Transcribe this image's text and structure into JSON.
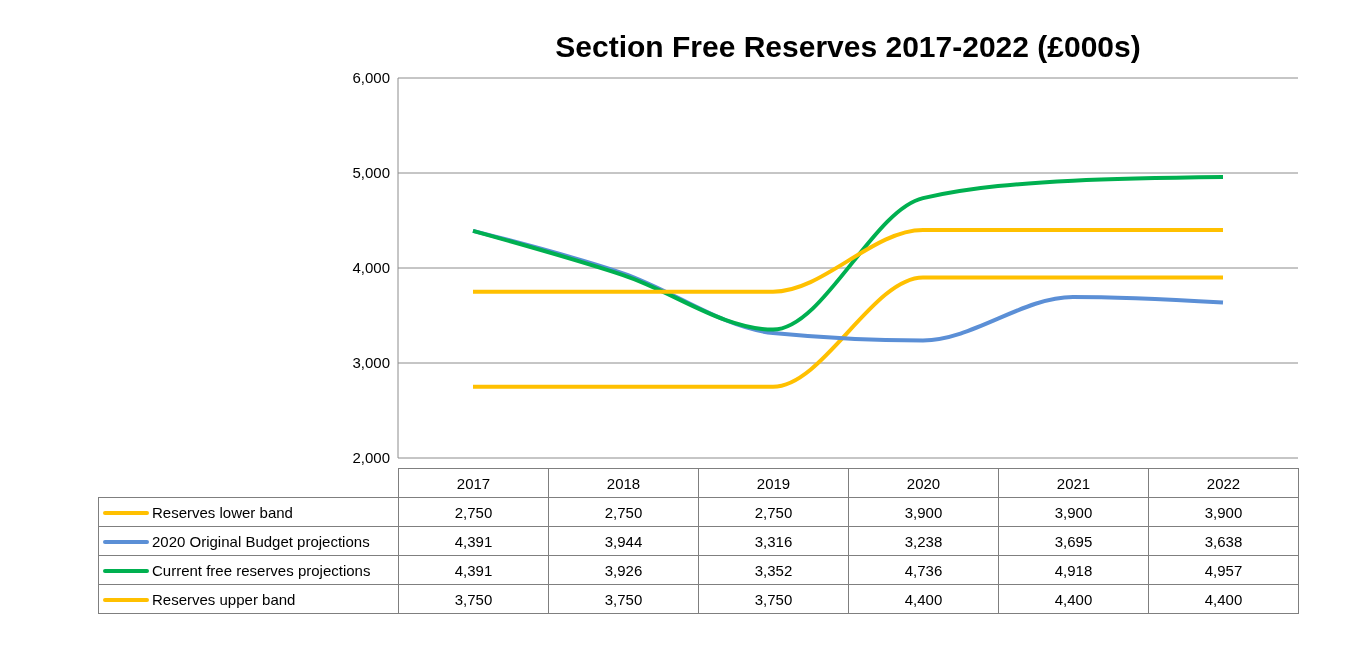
{
  "chart_data": {
    "type": "line",
    "title": "Section Free Reserves 2017-2022 (£000s)",
    "categories": [
      "2017",
      "2018",
      "2019",
      "2020",
      "2021",
      "2022"
    ],
    "series": [
      {
        "name": "Reserves lower band",
        "color": "#ffc000",
        "values": [
          2750,
          2750,
          2750,
          3900,
          3900,
          3900
        ],
        "value_labels": [
          "2,750",
          "2,750",
          "2,750",
          "3,900",
          "3,900",
          "3,900"
        ]
      },
      {
        "name": "2020 Original Budget projections",
        "color": "#5b8fd6",
        "values": [
          4391,
          3944,
          3316,
          3238,
          3695,
          3638
        ],
        "value_labels": [
          "4,391",
          "3,944",
          "3,316",
          "3,238",
          "3,695",
          "3,638"
        ]
      },
      {
        "name": "Current free reserves projections",
        "color": "#00b050",
        "values": [
          4391,
          3926,
          3352,
          4736,
          4918,
          4957
        ],
        "value_labels": [
          "4,391",
          "3,926",
          "3,352",
          "4,736",
          "4,918",
          "4,957"
        ]
      },
      {
        "name": "Reserves upper band",
        "color": "#ffc000",
        "values": [
          3750,
          3750,
          3750,
          4400,
          4400,
          4400
        ],
        "value_labels": [
          "3,750",
          "3,750",
          "3,750",
          "4,400",
          "4,400",
          "4,400"
        ]
      }
    ],
    "ylim": [
      2000,
      6000
    ],
    "yticks": [
      {
        "value": 2000,
        "label": "2,000"
      },
      {
        "value": 3000,
        "label": "3,000"
      },
      {
        "value": 4000,
        "label": "4,000"
      },
      {
        "value": 5000,
        "label": "5,000"
      },
      {
        "value": 6000,
        "label": "6,000"
      }
    ],
    "grid": "y",
    "legend": "bottom left",
    "marker": "none",
    "line_style": "solid"
  }
}
